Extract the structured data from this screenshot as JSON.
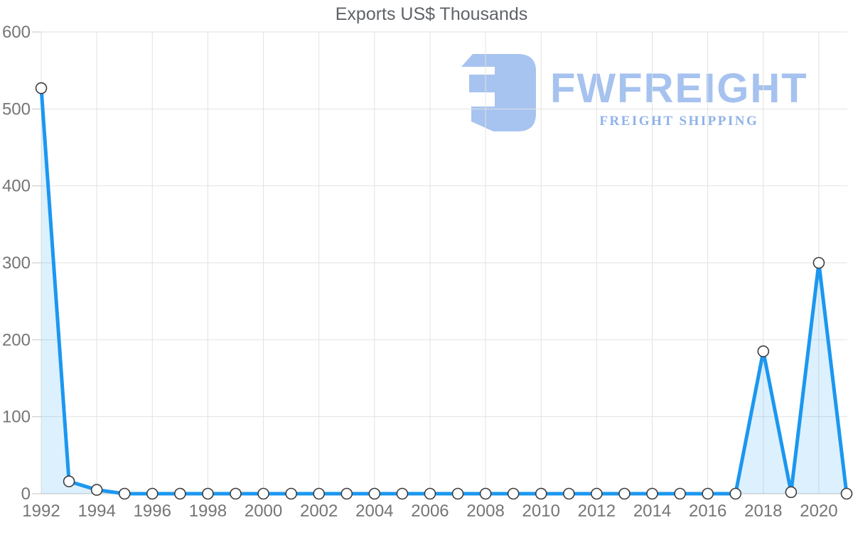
{
  "chart_data": {
    "type": "area",
    "title": "Exports US$ Thousands",
    "x": [
      1992,
      1993,
      1994,
      1995,
      1996,
      1997,
      1998,
      1999,
      2000,
      2001,
      2002,
      2003,
      2004,
      2005,
      2006,
      2007,
      2008,
      2009,
      2010,
      2011,
      2012,
      2013,
      2014,
      2015,
      2016,
      2017,
      2018,
      2019,
      2020,
      2021
    ],
    "series": [
      {
        "name": "Exports US$ Thousands",
        "values": [
          527,
          16,
          5,
          0,
          0,
          0,
          0,
          0,
          0,
          0,
          0,
          0,
          0,
          0,
          0,
          0,
          0,
          0,
          0,
          0,
          0,
          0,
          0,
          0,
          0,
          0,
          185,
          2,
          300,
          0
        ]
      }
    ],
    "xlabel": "",
    "ylabel": "",
    "ylim": [
      0,
      600
    ],
    "yticks": [
      0,
      100,
      200,
      300,
      400,
      500,
      600
    ],
    "xticks": [
      1992,
      1994,
      1996,
      1998,
      2000,
      2002,
      2004,
      2006,
      2008,
      2010,
      2012,
      2014,
      2016,
      2018,
      2020
    ],
    "grid": true,
    "legend": "none",
    "marker": "circle",
    "colors": {
      "line": "#1b97f0",
      "fill": "rgba(27,151,240,0.15)",
      "marker_fill": "#ffffff",
      "marker_stroke": "#3d3d3d",
      "grid": "#e2e2e2",
      "axis": "#c4c4c4",
      "tick_label": "#757575",
      "title": "#5f6368"
    }
  },
  "watermark": {
    "brand": "FWFREIGHT",
    "tagline": "FREIGHT SHIPPING",
    "icon": "fwfreight-logo-icon",
    "color_brand": "#a6c2ef",
    "color_tagline": "#8fb2e9",
    "color_icon": "#a7c3ef"
  }
}
